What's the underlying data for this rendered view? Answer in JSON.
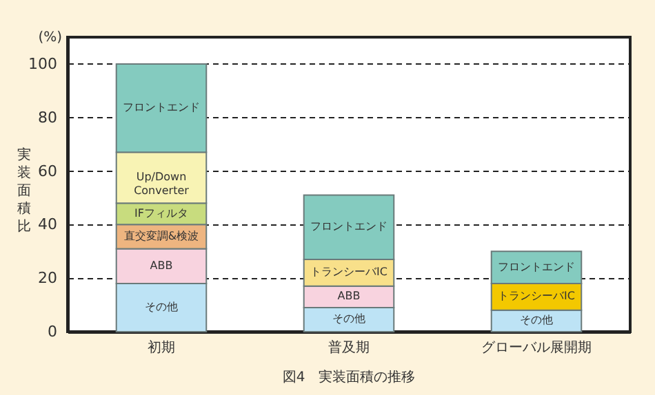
{
  "chart_data": {
    "type": "bar",
    "stacked": true,
    "title": "図4　実装面積の推移",
    "ylabel": "実装面積比",
    "annotations": [
      "(%)"
    ],
    "categories": [
      "初期",
      "普及期",
      "グローバル展開期"
    ],
    "series": [
      {
        "name": "その他",
        "color": "#bde3f5",
        "values": [
          18,
          9,
          8
        ]
      },
      {
        "name": "ABB",
        "color": "#f8d3df",
        "values": [
          13,
          8,
          null
        ]
      },
      {
        "name": "直交変調&検波",
        "color": "#eeb580",
        "values": [
          9,
          null,
          null
        ]
      },
      {
        "name": "IFフィルタ",
        "color": "#c8dc7e",
        "values": [
          8,
          null,
          null
        ]
      },
      {
        "name": "Up/Down Converter",
        "color": "#f8f3b4",
        "values": [
          19,
          null,
          null
        ]
      },
      {
        "name": "トランシーバIC",
        "colors": [
          "#f8e08a",
          "#f8e08a",
          "#f3c800"
        ],
        "values": [
          null,
          10,
          10
        ]
      },
      {
        "name": "フロントエンド",
        "color": "#84cbbf",
        "values": [
          33,
          24,
          12
        ]
      }
    ],
    "ylim": [
      0,
      110
    ],
    "yticks": [
      0,
      20,
      40,
      60,
      80,
      100
    ],
    "grid": "y"
  }
}
